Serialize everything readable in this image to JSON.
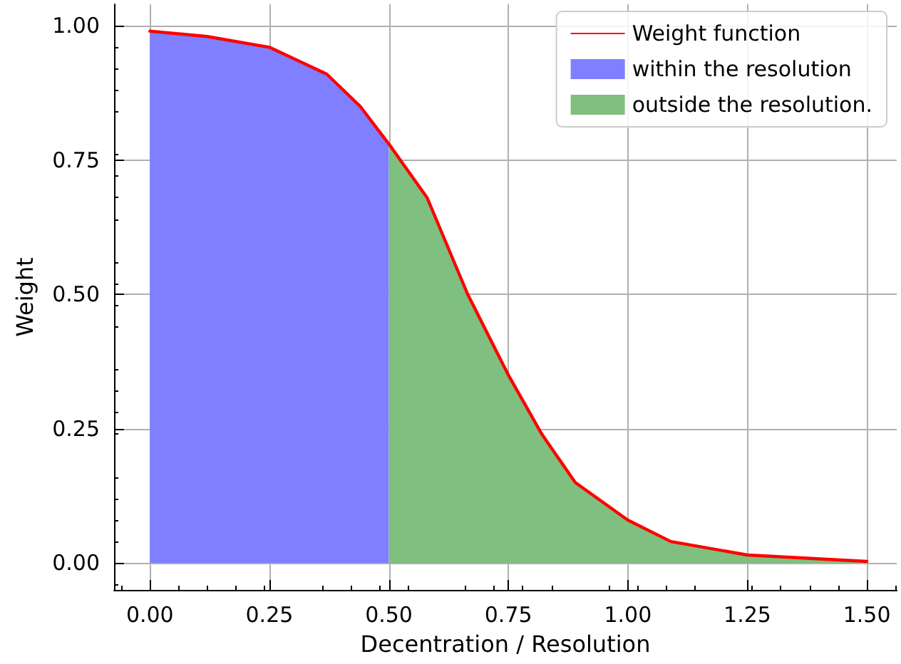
{
  "chart_data": {
    "type": "line",
    "xlabel": "Decentration / Resolution",
    "ylabel": "Weight",
    "xlim": [
      -0.075,
      1.5625
    ],
    "ylim": [
      -0.05,
      1.04
    ],
    "xticks": [
      {
        "value": 0,
        "label": "0.00"
      },
      {
        "value": 0.25,
        "label": "0.25"
      },
      {
        "value": 0.5,
        "label": "0.50"
      },
      {
        "value": 0.75,
        "label": "0.75"
      },
      {
        "value": 1,
        "label": "1.00"
      },
      {
        "value": 1.25,
        "label": "1.25"
      },
      {
        "value": 1.5,
        "label": "1.50"
      }
    ],
    "yticks": [
      {
        "value": 0,
        "label": "0.00"
      },
      {
        "value": 0.25,
        "label": "0.25"
      },
      {
        "value": 0.5,
        "label": "0.50"
      },
      {
        "value": 0.75,
        "label": "0.75"
      },
      {
        "value": 1,
        "label": "1.00"
      }
    ],
    "grid": true,
    "legend": "top right",
    "marker": "none",
    "series": [
      {
        "name": "Weight function",
        "color": "#ff0000",
        "x": [
          0,
          0.12,
          0.25,
          0.37,
          0.44,
          0.5,
          0.58,
          0.665,
          0.75,
          0.82,
          0.89,
          1.0,
          1.09,
          1.25,
          1.5
        ],
        "values": [
          0.99,
          0.98,
          0.96,
          0.91,
          0.85,
          0.78,
          0.68,
          0.5,
          0.35,
          0.24,
          0.15,
          0.08,
          0.04,
          0.015,
          0.003
        ]
      },
      {
        "name": "within the resolution",
        "type": "area",
        "color": "#7f7fff",
        "x": [
          0,
          0.12,
          0.25,
          0.37,
          0.44,
          0.5
        ],
        "values": [
          0.99,
          0.98,
          0.96,
          0.91,
          0.85,
          0.78
        ]
      },
      {
        "name": "outside the resolution.",
        "type": "area",
        "color": "#7fbf7f",
        "x": [
          0.5,
          0.58,
          0.665,
          0.75,
          0.82,
          0.89,
          1.0,
          1.09,
          1.25,
          1.5
        ],
        "values": [
          0.78,
          0.68,
          0.5,
          0.35,
          0.24,
          0.15,
          0.08,
          0.04,
          0.015,
          0.003
        ]
      }
    ]
  }
}
